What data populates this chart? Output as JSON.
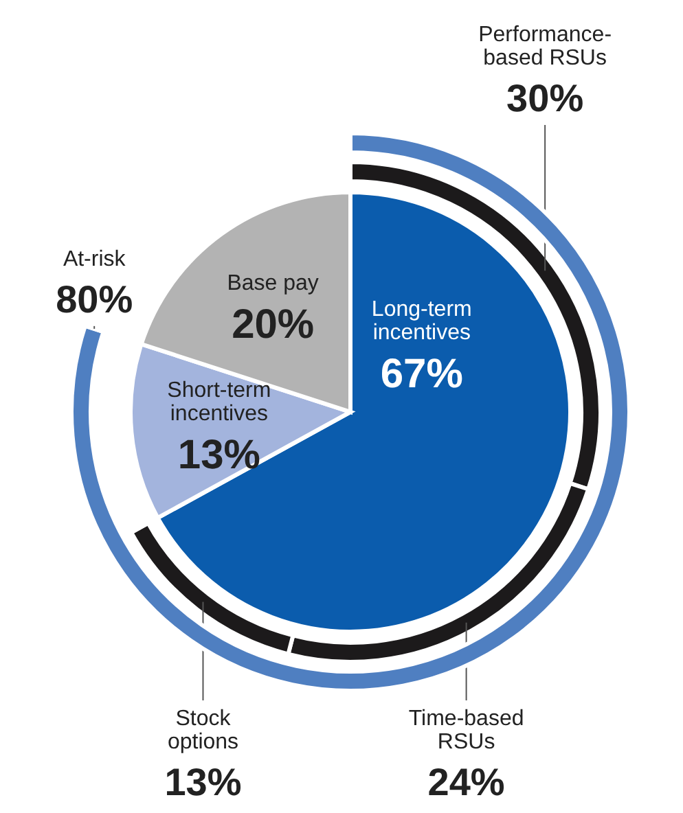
{
  "chart_data": [
    {
      "type": "pie",
      "categories": [
        "Long-term incentives",
        "Short-term incentives",
        "Base pay"
      ],
      "values": [
        67,
        13,
        20
      ],
      "colors": [
        "#0b5cad",
        "#a3b4dd",
        "#b3b3b3"
      ],
      "value_labels": [
        "67%",
        "13%",
        "20%"
      ]
    },
    {
      "type": "donut",
      "categories": [
        "Performance-based RSUs",
        "Time-based RSUs",
        "Stock options",
        null
      ],
      "values": [
        30,
        24,
        13,
        33
      ],
      "colors": [
        "#1c1a1b",
        "#1c1a1b",
        "#1c1a1b",
        "#ffffff"
      ],
      "value_labels": [
        "30%",
        "24%",
        "13%",
        null
      ]
    },
    {
      "type": "donut",
      "categories": [
        "At-risk",
        null
      ],
      "values": [
        80,
        20
      ],
      "colors": [
        "#4f7fc1",
        "#ffffff"
      ],
      "value_labels": [
        "80%",
        null
      ]
    }
  ]
}
